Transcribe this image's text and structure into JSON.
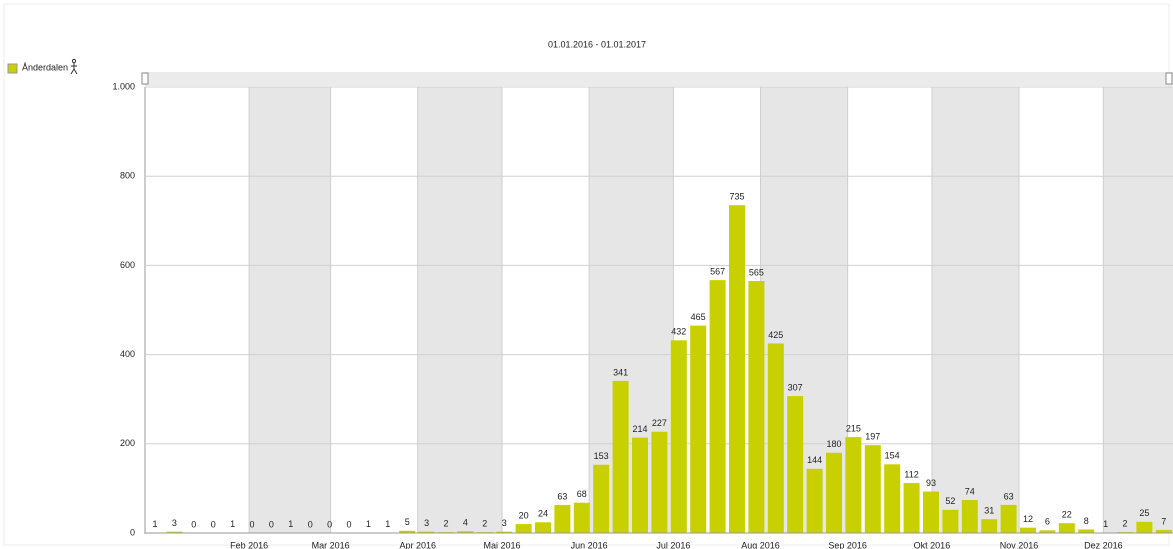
{
  "chart_data": {
    "type": "bar",
    "title": "01.01.2016 - 01.01.2017",
    "series": [
      {
        "name": "Ånderdalen",
        "color": "#c9d000",
        "values": [
          1,
          3,
          0,
          0,
          1,
          0,
          0,
          1,
          0,
          0,
          0,
          1,
          1,
          5,
          3,
          2,
          4,
          2,
          3,
          20,
          24,
          63,
          68,
          153,
          341,
          214,
          227,
          432,
          465,
          567,
          735,
          565,
          425,
          307,
          144,
          180,
          215,
          197,
          154,
          112,
          93,
          52,
          74,
          31,
          63,
          12,
          6,
          22,
          8,
          1,
          2,
          25,
          7
        ]
      }
    ],
    "categories": [
      null,
      null,
      null,
      null,
      null,
      null,
      null,
      null,
      null,
      null,
      null,
      null,
      null,
      null,
      null,
      null,
      null,
      null,
      null,
      null,
      null,
      null,
      null,
      null,
      null,
      null,
      null,
      null,
      null,
      null,
      null,
      null,
      null,
      null,
      null,
      null,
      null,
      null,
      null,
      null,
      null,
      null,
      null,
      null,
      null,
      null,
      null,
      null,
      null,
      null,
      null,
      null,
      null
    ],
    "ylim": [
      0,
      1000
    ],
    "yticks": [
      0,
      200,
      400,
      600,
      800,
      {
        "value": 1000,
        "label": "1.000"
      }
    ],
    "xtick_labels": [
      "Feb 2016",
      "Mar 2016",
      "Apr 2016",
      "Mai 2016",
      "Jun 2016",
      "Jul 2016",
      "Aug 2016",
      "Sep 2016",
      "Okt 2016",
      "Nov 2016",
      "Dez 2016"
    ],
    "grid": true
  }
}
